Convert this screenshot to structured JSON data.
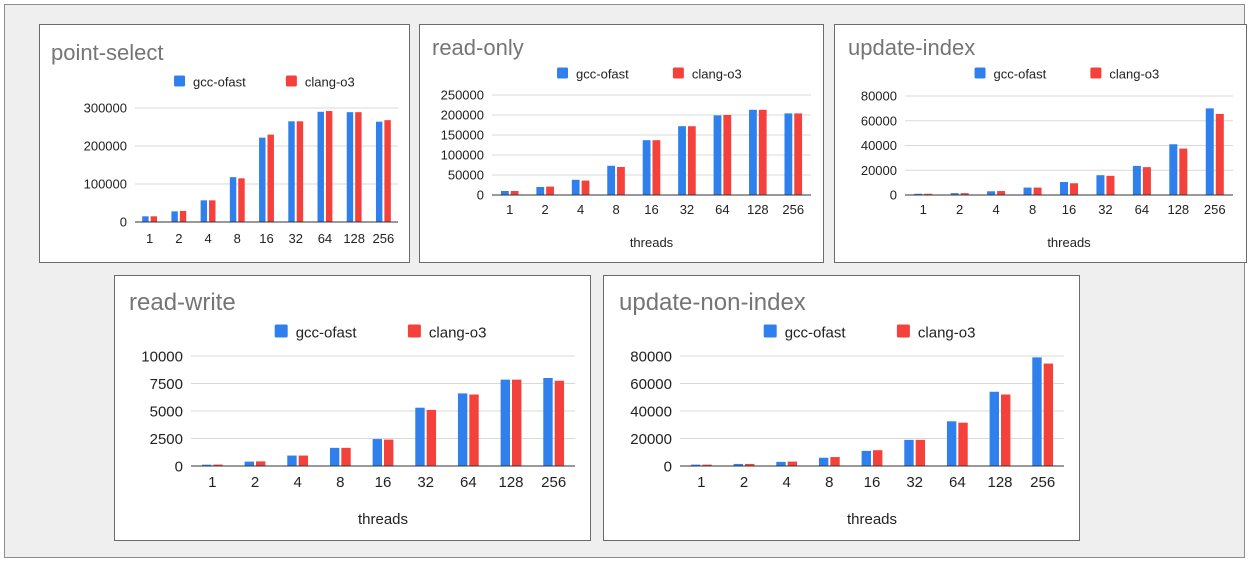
{
  "colors": {
    "gcc": "#2f80ed",
    "clang": "#f4413b",
    "grid": "#d9d9d9",
    "axis": "#333333",
    "title": "#757575",
    "text": "#222222"
  },
  "chart_data": [
    {
      "type": "bar",
      "title": "point-select",
      "xlabel": "",
      "ylabel": "",
      "categories": [
        "1",
        "2",
        "4",
        "8",
        "16",
        "32",
        "64",
        "128",
        "256"
      ],
      "ylim": [
        0,
        300000
      ],
      "yticks": [
        "0",
        "100000",
        "200000",
        "300000"
      ],
      "legend": "top",
      "grid": true,
      "series": [
        {
          "name": "gcc-ofast",
          "values": [
            15000,
            28000,
            57000,
            118000,
            222000,
            265000,
            290000,
            289000,
            264000
          ]
        },
        {
          "name": "clang-o3",
          "values": [
            15000,
            29000,
            57000,
            115000,
            230000,
            265000,
            292000,
            289000,
            268000
          ]
        }
      ]
    },
    {
      "type": "bar",
      "title": "read-only",
      "xlabel": "threads",
      "ylabel": "",
      "categories": [
        "1",
        "2",
        "4",
        "8",
        "16",
        "32",
        "64",
        "128",
        "256"
      ],
      "ylim": [
        0,
        250000
      ],
      "yticks": [
        "0",
        "50000",
        "100000",
        "150000",
        "200000",
        "250000"
      ],
      "legend": "top",
      "grid": true,
      "series": [
        {
          "name": "gcc-ofast",
          "values": [
            10000,
            20000,
            38000,
            73000,
            137000,
            172000,
            199000,
            213000,
            204000
          ]
        },
        {
          "name": "clang-o3",
          "values": [
            10000,
            21000,
            36000,
            70000,
            137000,
            172000,
            200000,
            213000,
            204000
          ]
        }
      ]
    },
    {
      "type": "bar",
      "title": "update-index",
      "xlabel": "threads",
      "ylabel": "",
      "categories": [
        "1",
        "2",
        "4",
        "8",
        "16",
        "32",
        "64",
        "128",
        "256"
      ],
      "ylim": [
        0,
        80000
      ],
      "yticks": [
        "0",
        "20000",
        "40000",
        "60000",
        "80000"
      ],
      "legend": "top",
      "grid": true,
      "series": [
        {
          "name": "gcc-ofast",
          "values": [
            1000,
            1500,
            3000,
            6000,
            10500,
            16000,
            23500,
            41000,
            70000
          ]
        },
        {
          "name": "clang-o3",
          "values": [
            1000,
            1500,
            3200,
            6000,
            9500,
            15500,
            22500,
            37500,
            65500
          ]
        }
      ]
    },
    {
      "type": "bar",
      "title": "read-write",
      "xlabel": "threads",
      "ylabel": "",
      "categories": [
        "1",
        "2",
        "4",
        "8",
        "16",
        "32",
        "64",
        "128",
        "256"
      ],
      "ylim": [
        0,
        10000
      ],
      "yticks": [
        "0",
        "2500",
        "5000",
        "7500",
        "10000"
      ],
      "legend": "top",
      "grid": true,
      "series": [
        {
          "name": "gcc-ofast",
          "values": [
            120,
            400,
            950,
            1650,
            2450,
            5300,
            6600,
            7850,
            8000
          ]
        },
        {
          "name": "clang-o3",
          "values": [
            130,
            420,
            950,
            1650,
            2400,
            5100,
            6500,
            7850,
            7750
          ]
        }
      ]
    },
    {
      "type": "bar",
      "title": "update-non-index",
      "xlabel": "threads",
      "ylabel": "",
      "categories": [
        "1",
        "2",
        "4",
        "8",
        "16",
        "32",
        "64",
        "128",
        "256"
      ],
      "ylim": [
        0,
        80000
      ],
      "yticks": [
        "0",
        "20000",
        "40000",
        "60000",
        "80000"
      ],
      "legend": "top",
      "grid": true,
      "series": [
        {
          "name": "gcc-ofast",
          "values": [
            1000,
            1500,
            3000,
            6000,
            11000,
            19000,
            32500,
            54000,
            79000
          ]
        },
        {
          "name": "clang-o3",
          "values": [
            1000,
            1500,
            3200,
            6500,
            11500,
            19000,
            31500,
            52000,
            74500
          ]
        }
      ]
    }
  ]
}
